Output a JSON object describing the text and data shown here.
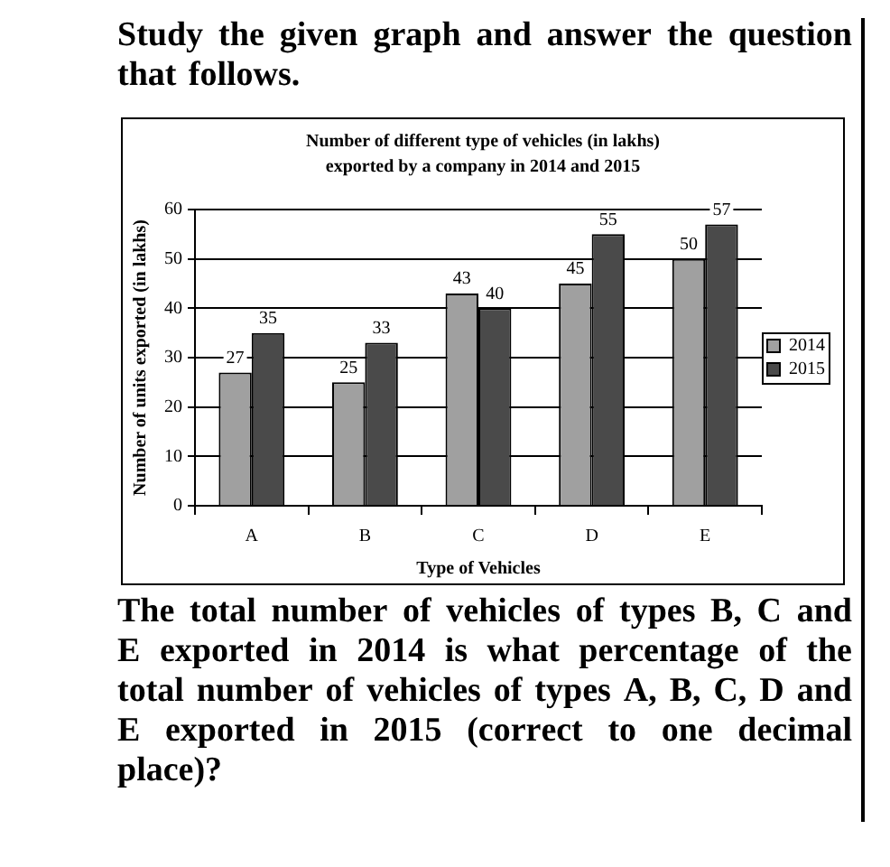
{
  "chart_data": {
    "type": "bar",
    "title": "Number of different type of vehicles (in lakhs) exported by a company in 2014 and 2015",
    "xlabel": "Type of Vehicles",
    "ylabel": "Number of units exported (in lakhs)",
    "categories": [
      "A",
      "B",
      "C",
      "D",
      "E"
    ],
    "series": [
      {
        "name": "2014",
        "color": "#a0a0a0",
        "values": [
          27,
          25,
          43,
          45,
          50
        ]
      },
      {
        "name": "2015",
        "color": "#4a4a4a",
        "values": [
          35,
          33,
          40,
          55,
          57
        ]
      }
    ],
    "ylim": [
      0,
      60
    ],
    "yticks": [
      0,
      10,
      20,
      30,
      40,
      50,
      60
    ],
    "grid": "y",
    "legend": "right",
    "data_labels": true,
    "annotations": [
      "Study the given graph and answer the question that follows.",
      "The total number of vehicles of types B, C and E exported in 2014 is what percentage of the total number of vehicles of types A, B, C, D and E exported in 2015 (correct to one decimal place)?"
    ]
  }
}
